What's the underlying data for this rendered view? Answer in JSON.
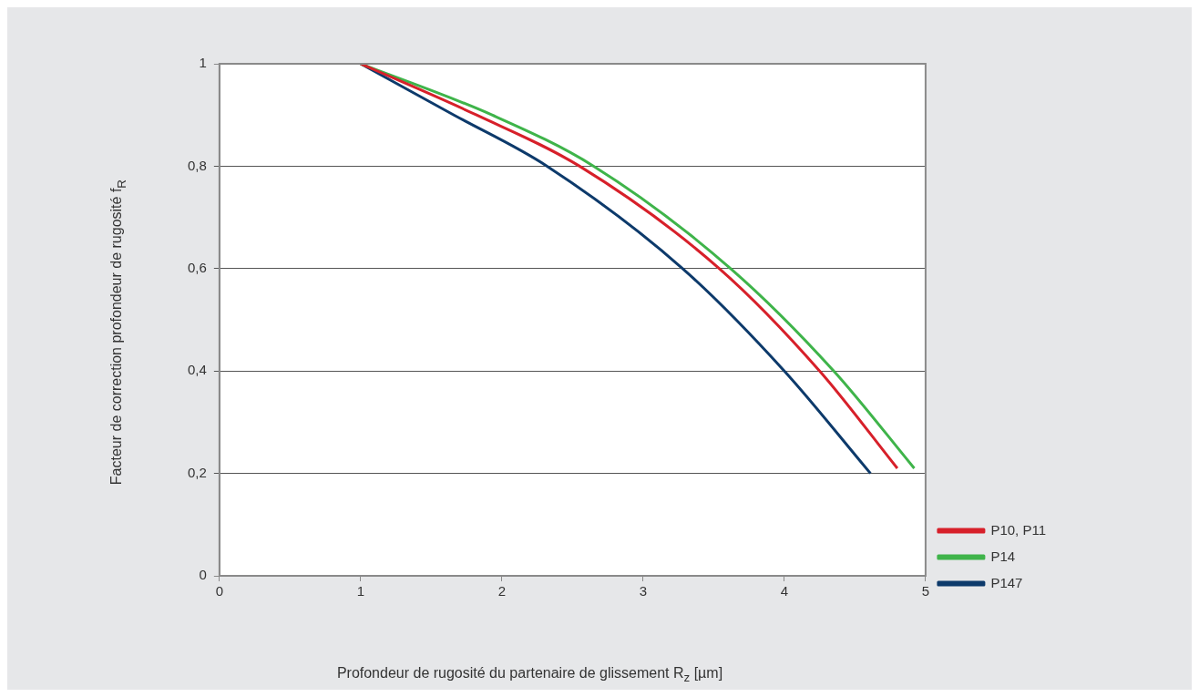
{
  "chart_data": {
    "type": "line",
    "xlabel": "Profondeur de rugosité du partenaire de glissement R$_{z}$ [µm]",
    "ylabel": "Facteur de correction profondeur de rugosité f$_{R}$",
    "xlim": [
      0,
      5
    ],
    "xticks": [
      0,
      1,
      2,
      3,
      4,
      5
    ],
    "ylim": [
      0,
      1
    ],
    "yticks": [
      0,
      {
        "value": 0.2,
        "label": "0,2"
      },
      {
        "value": 0.4,
        "label": "0,4"
      },
      {
        "value": 0.6,
        "label": "0,6"
      },
      {
        "value": 0.8,
        "label": "0,8"
      },
      1
    ],
    "grid": "y",
    "legend": "bottom right",
    "marker": "none",
    "line_style": "solid",
    "series": [
      {
        "name": "P10, P11",
        "color": "#d7202a",
        "x": [
          1,
          1.82,
          2.55,
          3.54,
          4.25,
          4.8
        ],
        "values": [
          1,
          0.9,
          0.8,
          0.6,
          0.4,
          0.21
        ]
      },
      {
        "name": "P14",
        "color": "#3fb44a",
        "x": [
          1,
          1.93,
          2.65,
          3.62,
          4.35,
          4.92
        ],
        "values": [
          1,
          0.9,
          0.8,
          0.6,
          0.4,
          0.21
        ]
      },
      {
        "name": "P147",
        "color": "#0d3a6b",
        "x": [
          1,
          1.66,
          2.32,
          3.28,
          4.0,
          4.61
        ],
        "values": [
          1,
          0.9,
          0.8,
          0.6,
          0.4,
          0.2
        ]
      }
    ]
  }
}
